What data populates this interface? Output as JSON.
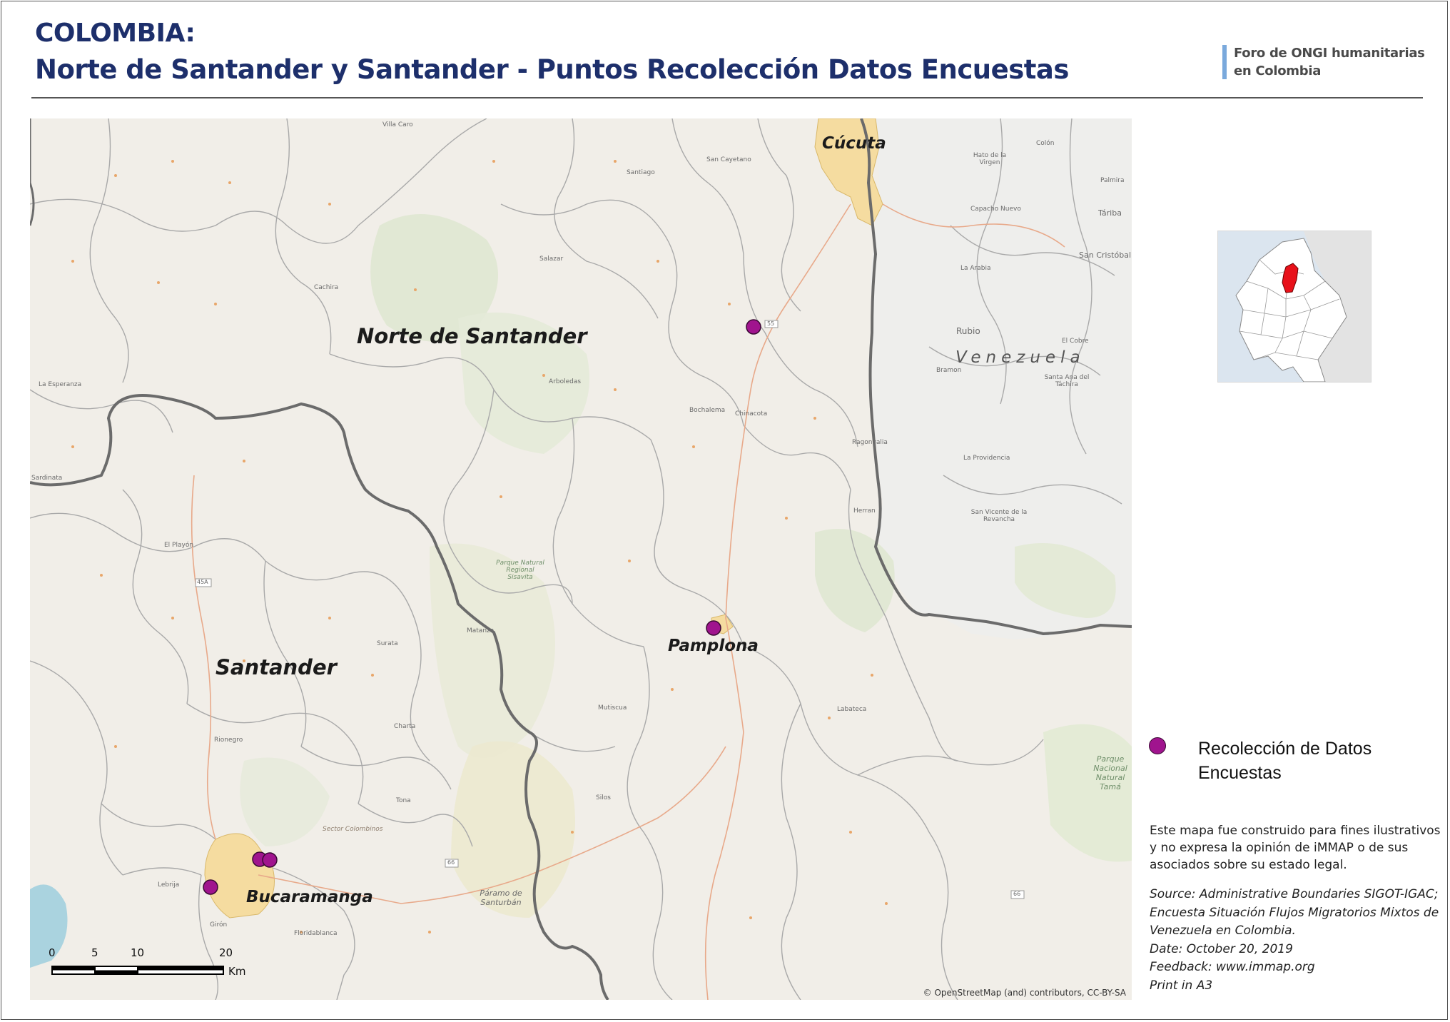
{
  "title": {
    "line1": "COLOMBIA:",
    "line2": "Norte de Santander y Santander - Puntos Recolección Datos Encuestas"
  },
  "logo": {
    "line1": "Foro de ONGI humanitarias",
    "line2": "en Colombia"
  },
  "map": {
    "regions": {
      "norte": "Norte de Santander",
      "santander": "Santander"
    },
    "cities": {
      "cucuta": "Cúcuta",
      "pamplona": "Pamplona",
      "bucaramanga": "Bucaramanga"
    },
    "country": "Venezuela",
    "towns": [
      "Villa Caro",
      "Santiago",
      "San Cayetano",
      "Salazar",
      "Cachira",
      "La Esperanza",
      "Arboledas",
      "Bochalema",
      "Chinacota",
      "Ragonvalia",
      "Herran",
      "El Playón",
      "Surata",
      "Rionegro",
      "Charta",
      "Tona",
      "Matanza",
      "Mutiscua",
      "Silos",
      "Labateca",
      "Lebrija",
      "Girón",
      "Floridablanca",
      "Páramo de Santurbán",
      "Parque Natural Regional Sisavita",
      "Sector Colombinos",
      "La Arabia",
      "Rubio",
      "El Cobre",
      "Bramon",
      "San Cristóbal",
      "Táriba",
      "La Providencia",
      "San Vicente de la Revancha",
      "Santa Ana del Táchira",
      "Parque Nacional Natural Tamá",
      "Capacho Nuevo",
      "Hato de la Virgen",
      "Palmira",
      "Colón",
      "Sardinata"
    ],
    "road_labels": [
      "55",
      "45A",
      "66",
      "66"
    ],
    "attribution": "© OpenStreetMap (and) contributors, CC-BY-SA",
    "survey_points": [
      {
        "name": "Survey point near Chinacota"
      },
      {
        "name": "Survey point Pamplona"
      },
      {
        "name": "Survey point Bucaramanga 1"
      },
      {
        "name": "Survey point Bucaramanga 2"
      },
      {
        "name": "Survey point Bucaramanga 3"
      }
    ]
  },
  "scalebar": {
    "ticks": [
      "0",
      "5",
      "10",
      "20"
    ],
    "unit": "Km"
  },
  "legend": {
    "item": "Recolección de Datos Encuestas",
    "line1": "Recolección de Datos",
    "line2": "Encuestas",
    "color": "#a0148e"
  },
  "disclaimer": "Este mapa fue construido para fines ilustrativos y no expresa la opinión de iMMAP o de sus asociados sobre su estado legal.",
  "source": {
    "line1": "Source: Administrative Boundaries SIGOT-IGAC;",
    "line2": "Encuesta Situación Flujos Migratorios Mixtos de",
    "line3": "Venezuela en Colombia.",
    "line4": "Date: October 20, 2019",
    "line5": "Feedback: www.immap.org",
    "line6": "Print in A3"
  },
  "colors": {
    "title": "#1d2f6b",
    "survey_point": "#a0148e",
    "highlight_department": "#e8111a",
    "urban_area": "#f5dca0",
    "boundary": "#6b6b6b"
  }
}
